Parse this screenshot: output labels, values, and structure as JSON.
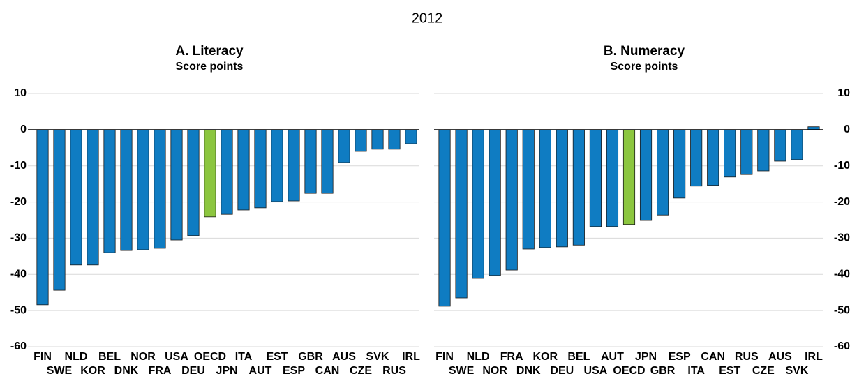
{
  "title": "2012",
  "chart_data": [
    {
      "type": "bar",
      "title": "A. Literacy",
      "subtitle": "Score points",
      "categories": [
        "FIN",
        "SWE",
        "NLD",
        "KOR",
        "BEL",
        "DNK",
        "NOR",
        "FRA",
        "USA",
        "DEU",
        "OECD",
        "JPN",
        "ITA",
        "AUT",
        "EST",
        "ESP",
        "GBR",
        "CAN",
        "AUS",
        "CZE",
        "SVK",
        "RUS",
        "IRL"
      ],
      "values": [
        -48.4,
        -44.4,
        -37.4,
        -37.4,
        -34.0,
        -33.4,
        -33.2,
        -32.8,
        -30.5,
        -29.3,
        -24.1,
        -23.4,
        -22.2,
        -21.6,
        -19.9,
        -19.7,
        -17.6,
        -17.6,
        -9.1,
        -6.0,
        -5.4,
        -5.4,
        -3.9
      ],
      "colors": [
        "#0f7cc2",
        "#0f7cc2",
        "#0f7cc2",
        "#0f7cc2",
        "#0f7cc2",
        "#0f7cc2",
        "#0f7cc2",
        "#0f7cc2",
        "#0f7cc2",
        "#0f7cc2",
        "#8cc63f",
        "#0f7cc2",
        "#0f7cc2",
        "#0f7cc2",
        "#0f7cc2",
        "#0f7cc2",
        "#0f7cc2",
        "#0f7cc2",
        "#0f7cc2",
        "#0f7cc2",
        "#0f7cc2",
        "#0f7cc2",
        "#0f7cc2"
      ],
      "ylim": [
        -60,
        10
      ],
      "yticks": [
        -60,
        -50,
        -40,
        -30,
        -20,
        -10,
        0,
        10
      ],
      "grid": true,
      "yaxis_side": "left"
    },
    {
      "type": "bar",
      "title": "B. Numeracy",
      "subtitle": "Score points",
      "categories": [
        "FIN",
        "SWE",
        "NLD",
        "NOR",
        "FRA",
        "DNK",
        "KOR",
        "DEU",
        "BEL",
        "USA",
        "AUT",
        "OECD",
        "JPN",
        "GBR",
        "ESP",
        "ITA",
        "CAN",
        "EST",
        "RUS",
        "CZE",
        "AUS",
        "SVK",
        "IRL"
      ],
      "values": [
        -48.8,
        -46.5,
        -41.1,
        -40.3,
        -38.8,
        -33.0,
        -32.6,
        -32.4,
        -31.9,
        -26.8,
        -26.8,
        -26.2,
        -25.1,
        -23.6,
        -18.9,
        -15.6,
        -15.4,
        -13.1,
        -12.4,
        -11.4,
        -8.7,
        -8.3,
        0.8
      ],
      "colors": [
        "#0f7cc2",
        "#0f7cc2",
        "#0f7cc2",
        "#0f7cc2",
        "#0f7cc2",
        "#0f7cc2",
        "#0f7cc2",
        "#0f7cc2",
        "#0f7cc2",
        "#0f7cc2",
        "#0f7cc2",
        "#8cc63f",
        "#0f7cc2",
        "#0f7cc2",
        "#0f7cc2",
        "#0f7cc2",
        "#0f7cc2",
        "#0f7cc2",
        "#0f7cc2",
        "#0f7cc2",
        "#0f7cc2",
        "#0f7cc2",
        "#0f7cc2"
      ],
      "ylim": [
        -60,
        10
      ],
      "yticks": [
        -60,
        -50,
        -40,
        -30,
        -20,
        -10,
        0,
        10
      ],
      "grid": true,
      "yaxis_side": "right"
    }
  ]
}
